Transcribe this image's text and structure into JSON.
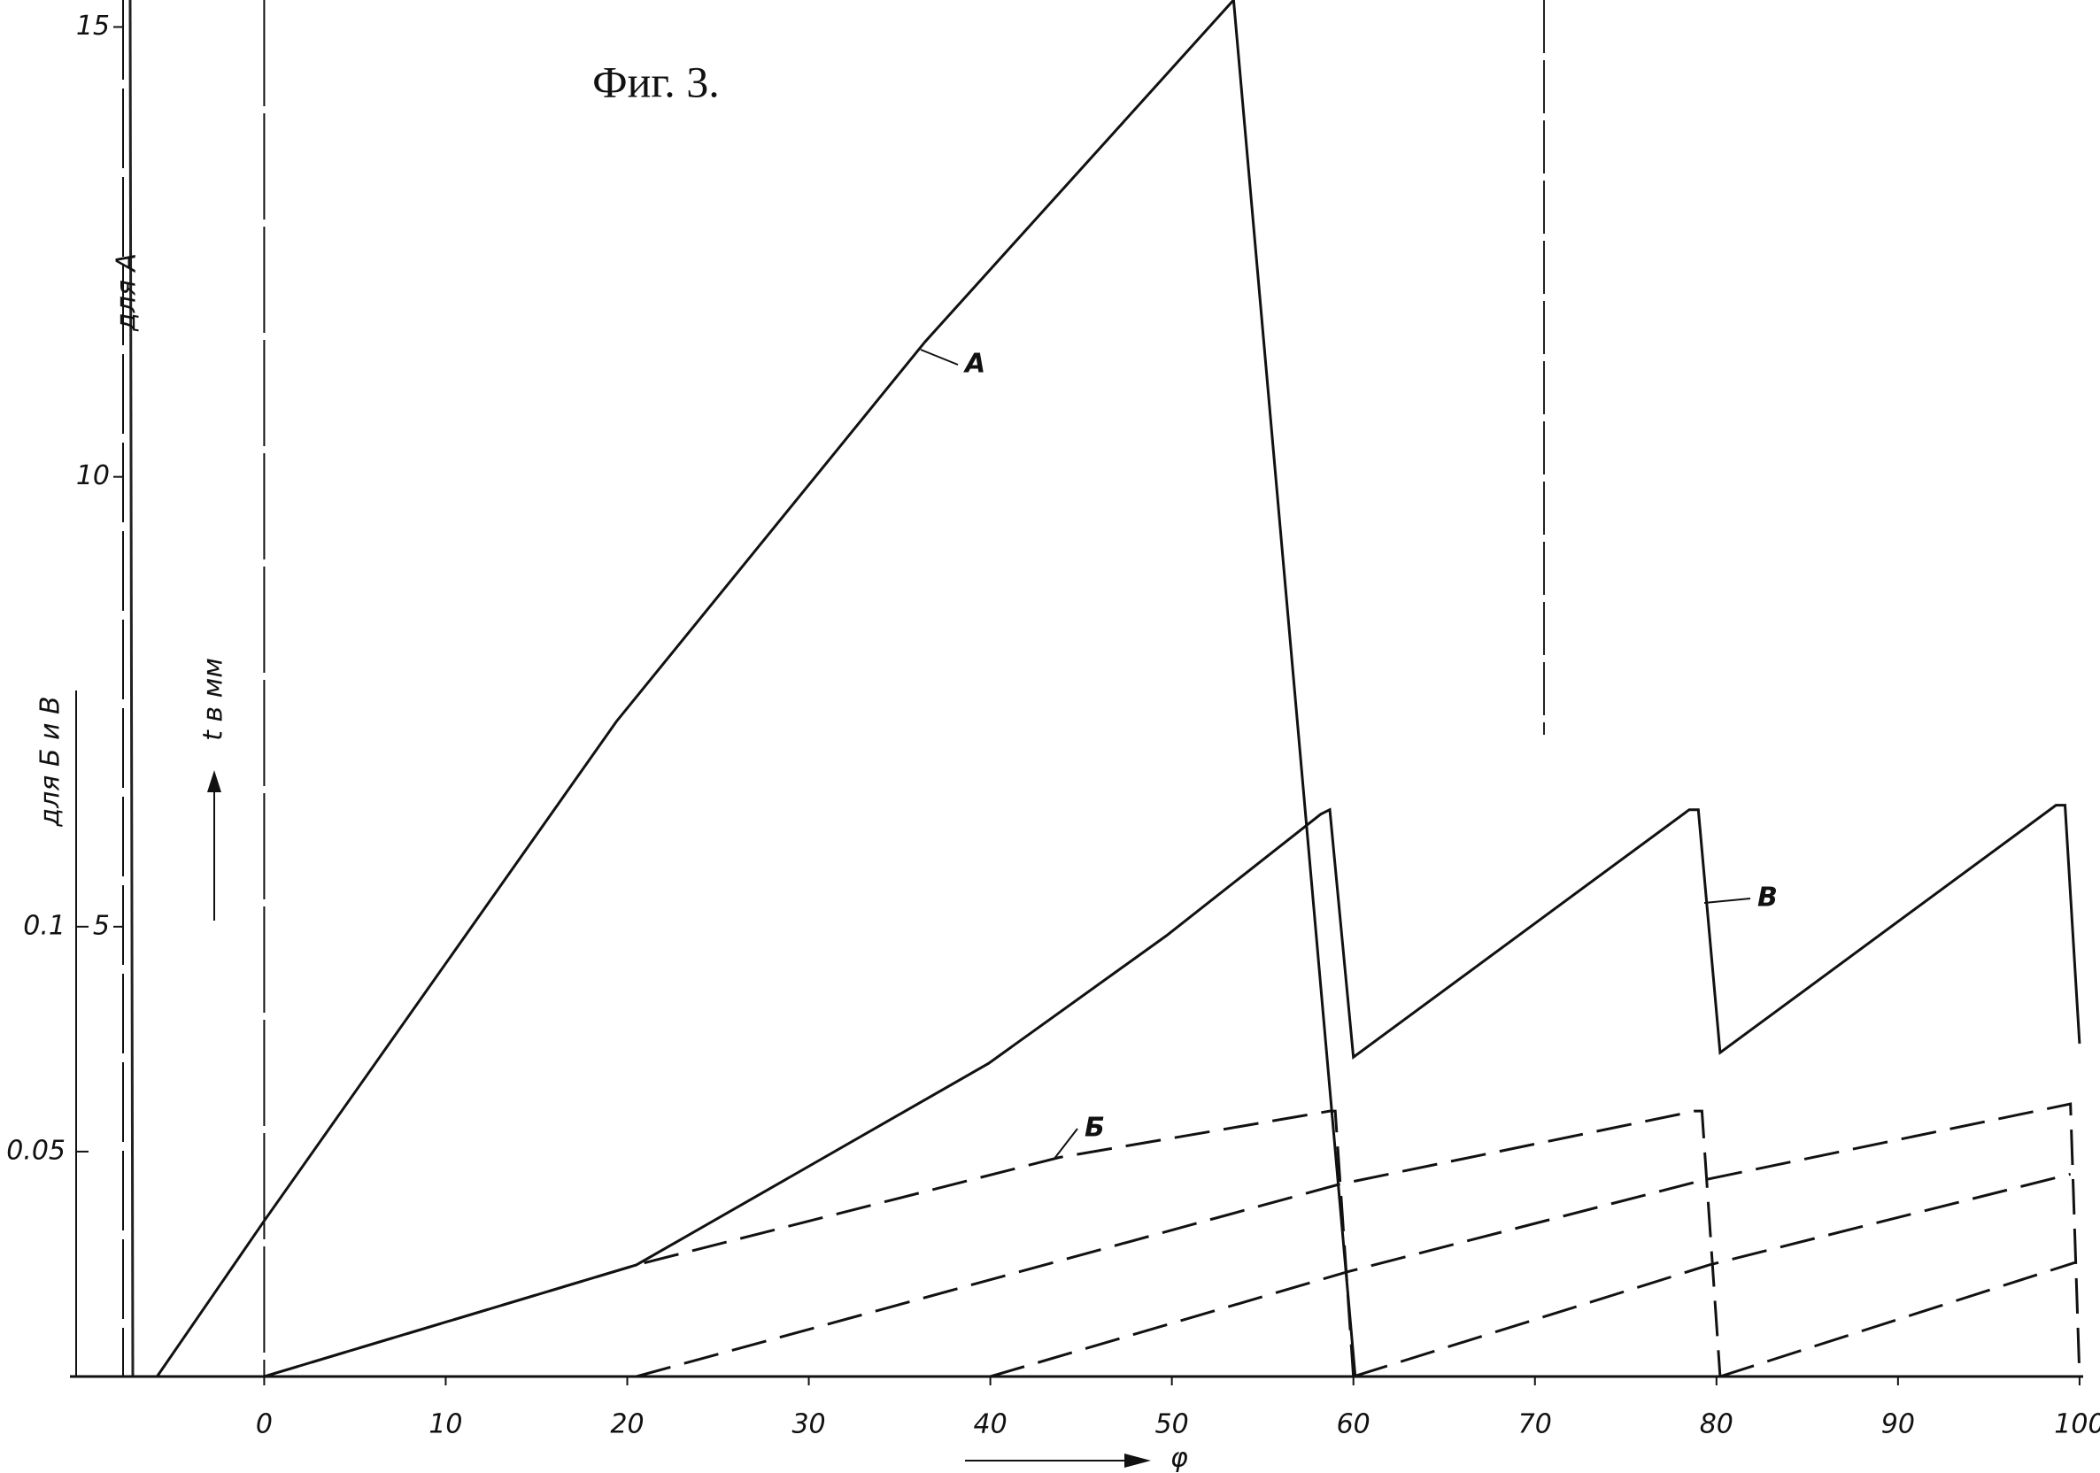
{
  "chart_data": {
    "type": "line",
    "title": "Фиг. 3.",
    "ylabel": "для А",
    "y2label": "для Б и В",
    "yunit_label": "t в мм",
    "xlabel": "φ",
    "xlim": [
      -10.7,
      100.2
    ],
    "xticks": [
      0,
      10,
      20,
      30,
      40,
      50,
      60,
      70,
      80,
      90,
      100
    ],
    "ylim": [
      0,
      15.3
    ],
    "yticks": [
      5,
      10,
      15
    ],
    "y2lim": [
      0,
      0.306
    ],
    "y2ticks": [
      0.05,
      0.1
    ],
    "series": [
      {
        "name": "A",
        "color": "#111111",
        "dashed": false,
        "x": [
          -5.9,
          0,
          19.4,
          36.4,
          53.4,
          60.1
        ],
        "values": [
          0,
          1.73,
          7.28,
          11.5,
          15.3,
          0
        ]
      },
      {
        "name": "В",
        "color": "#111111",
        "dashed": false,
        "axis": "y2",
        "x": [
          0,
          20.5,
          39.9,
          49.7,
          58.2,
          58.7,
          60,
          78.5,
          79,
          80.2,
          98.7,
          99.2,
          100
        ],
        "values": [
          0,
          0.0248,
          0.0696,
          0.098,
          0.125,
          0.126,
          0.071,
          0.126,
          0.126,
          0.072,
          0.127,
          0.127,
          0.074
        ]
      },
      {
        "name": "Б",
        "color": "#111111",
        "dashed": true,
        "axis": "y2",
        "x": [
          0,
          20.5,
          43.8,
          58.7,
          59,
          60
        ],
        "values": [
          0,
          0.0248,
          0.0487,
          0.059,
          0.059,
          0
        ]
      },
      {
        "color": "#111111",
        "dashed": true,
        "axis": "y2",
        "x": [
          20.5,
          59.2,
          78.8,
          79.2,
          80.2
        ],
        "values": [
          0,
          0.0427,
          0.059,
          0.059,
          0
        ]
      },
      {
        "color": "#111111",
        "dashed": true,
        "axis": "y2",
        "x": [
          40,
          59.7,
          79.2,
          99.5,
          100
        ],
        "values": [
          0,
          0.0233,
          0.0436,
          0.0606,
          0
        ]
      },
      {
        "color": "#111111",
        "dashed": true,
        "axis": "y2",
        "x": [
          60,
          79.6,
          99.5
        ],
        "values": [
          0,
          0.0248,
          0.045
        ]
      },
      {
        "color": "#111111",
        "dashed": true,
        "axis": "y2",
        "x": [
          80.2,
          99.8
        ],
        "values": [
          0,
          0.0254
        ]
      }
    ]
  }
}
